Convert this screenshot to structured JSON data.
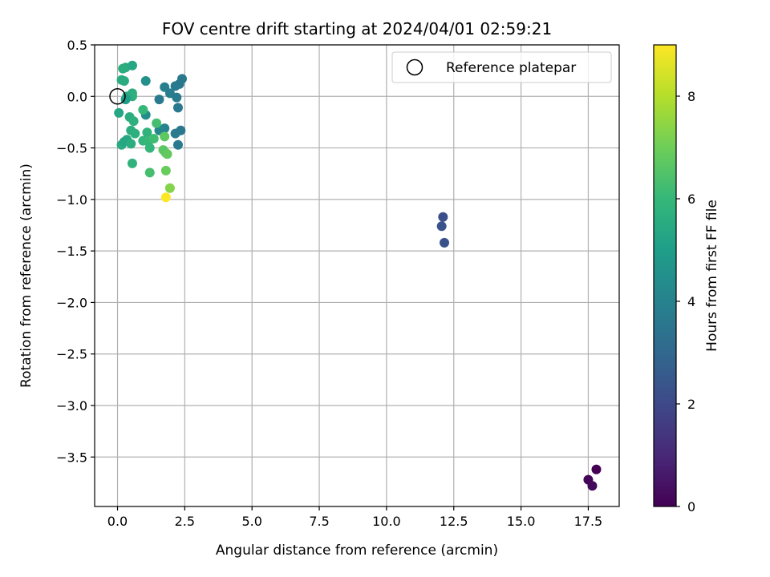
{
  "chart_data": {
    "type": "scatter",
    "title": "FOV centre drift starting at 2024/04/01 02:59:21",
    "xlabel": "Angular distance from reference (arcmin)",
    "ylabel": "Rotation from reference (arcmin)",
    "xlim": [
      -0.85,
      18.65
    ],
    "ylim": [
      -3.98,
      0.5
    ],
    "xticks": [
      0.0,
      2.5,
      5.0,
      7.5,
      10.0,
      12.5,
      15.0,
      17.5
    ],
    "xtick_labels": [
      "0.0",
      "2.5",
      "5.0",
      "7.5",
      "10.0",
      "12.5",
      "15.0",
      "17.5"
    ],
    "yticks": [
      0.5,
      0.0,
      -0.5,
      -1.0,
      -1.5,
      -2.0,
      -2.5,
      -3.0,
      -3.5
    ],
    "ytick_labels": [
      "0.5",
      "0.0",
      "−0.5",
      "−1.0",
      "−1.5",
      "−2.0",
      "−2.5",
      "−3.0",
      "−3.5"
    ],
    "grid": true,
    "legend": {
      "position": "top-right",
      "entries": [
        "Reference platepar"
      ]
    },
    "reference_point": {
      "x": 0.0,
      "y": 0.0
    },
    "colorbar": {
      "label": "Hours from first FF file",
      "range": [
        0,
        9
      ],
      "ticks": [
        0,
        2,
        4,
        6,
        8
      ],
      "tick_labels": [
        "0",
        "2",
        "4",
        "6",
        "8"
      ],
      "colormap": "viridis"
    },
    "points": [
      {
        "x": 17.8,
        "y": -3.62,
        "c": 0.0
      },
      {
        "x": 17.5,
        "y": -3.72,
        "c": 0.1
      },
      {
        "x": 17.65,
        "y": -3.78,
        "c": 0.2
      },
      {
        "x": 12.1,
        "y": -1.17,
        "c": 2.2
      },
      {
        "x": 12.05,
        "y": -1.26,
        "c": 2.3
      },
      {
        "x": 12.15,
        "y": -1.42,
        "c": 2.3
      },
      {
        "x": 2.4,
        "y": 0.17,
        "c": 3.6
      },
      {
        "x": 2.3,
        "y": 0.12,
        "c": 3.6
      },
      {
        "x": 2.15,
        "y": 0.1,
        "c": 3.7
      },
      {
        "x": 1.75,
        "y": 0.09,
        "c": 3.9
      },
      {
        "x": 1.95,
        "y": 0.03,
        "c": 3.8
      },
      {
        "x": 2.2,
        "y": -0.01,
        "c": 3.7
      },
      {
        "x": 1.55,
        "y": -0.03,
        "c": 3.7
      },
      {
        "x": 2.25,
        "y": -0.11,
        "c": 3.6
      },
      {
        "x": 2.35,
        "y": -0.33,
        "c": 3.6
      },
      {
        "x": 2.15,
        "y": -0.36,
        "c": 3.7
      },
      {
        "x": 2.25,
        "y": -0.47,
        "c": 3.7
      },
      {
        "x": 1.75,
        "y": -0.31,
        "c": 4.0
      },
      {
        "x": 1.55,
        "y": -0.33,
        "c": 4.2
      },
      {
        "x": 1.05,
        "y": 0.15,
        "c": 4.5
      },
      {
        "x": 1.05,
        "y": -0.18,
        "c": 4.4
      },
      {
        "x": 0.55,
        "y": 0.3,
        "c": 5.3
      },
      {
        "x": 0.3,
        "y": 0.28,
        "c": 5.4
      },
      {
        "x": 0.2,
        "y": 0.27,
        "c": 5.6
      },
      {
        "x": 0.15,
        "y": 0.16,
        "c": 5.6
      },
      {
        "x": 0.25,
        "y": 0.15,
        "c": 5.5
      },
      {
        "x": 0.55,
        "y": 0.03,
        "c": 5.6
      },
      {
        "x": 0.55,
        "y": 0.0,
        "c": 5.7
      },
      {
        "x": 0.35,
        "y": 0.0,
        "c": 5.4
      },
      {
        "x": 0.3,
        "y": -0.03,
        "c": 5.0
      },
      {
        "x": 0.05,
        "y": -0.16,
        "c": 5.3
      },
      {
        "x": 0.45,
        "y": -0.2,
        "c": 5.6
      },
      {
        "x": 0.6,
        "y": -0.24,
        "c": 5.7
      },
      {
        "x": 0.95,
        "y": -0.13,
        "c": 6.0
      },
      {
        "x": 0.5,
        "y": -0.33,
        "c": 5.6
      },
      {
        "x": 0.65,
        "y": -0.36,
        "c": 5.7
      },
      {
        "x": 0.35,
        "y": -0.42,
        "c": 5.4
      },
      {
        "x": 0.15,
        "y": -0.47,
        "c": 5.5
      },
      {
        "x": 0.25,
        "y": -0.44,
        "c": 5.3
      },
      {
        "x": 0.5,
        "y": -0.46,
        "c": 5.6
      },
      {
        "x": 0.55,
        "y": -0.65,
        "c": 5.8
      },
      {
        "x": 0.95,
        "y": -0.43,
        "c": 5.9
      },
      {
        "x": 1.1,
        "y": -0.35,
        "c": 5.8
      },
      {
        "x": 1.15,
        "y": -0.44,
        "c": 6.0
      },
      {
        "x": 1.2,
        "y": -0.5,
        "c": 5.9
      },
      {
        "x": 1.45,
        "y": -0.26,
        "c": 6.3
      },
      {
        "x": 1.35,
        "y": -0.41,
        "c": 6.2
      },
      {
        "x": 1.2,
        "y": -0.74,
        "c": 6.3
      },
      {
        "x": 1.75,
        "y": -0.39,
        "c": 6.7
      },
      {
        "x": 1.7,
        "y": -0.52,
        "c": 6.7
      },
      {
        "x": 1.8,
        "y": -0.55,
        "c": 6.6
      },
      {
        "x": 1.85,
        "y": -0.56,
        "c": 6.8
      },
      {
        "x": 1.8,
        "y": -0.72,
        "c": 6.9
      },
      {
        "x": 1.95,
        "y": -0.89,
        "c": 7.3
      },
      {
        "x": 1.8,
        "y": -0.98,
        "c": 9.0
      }
    ]
  }
}
